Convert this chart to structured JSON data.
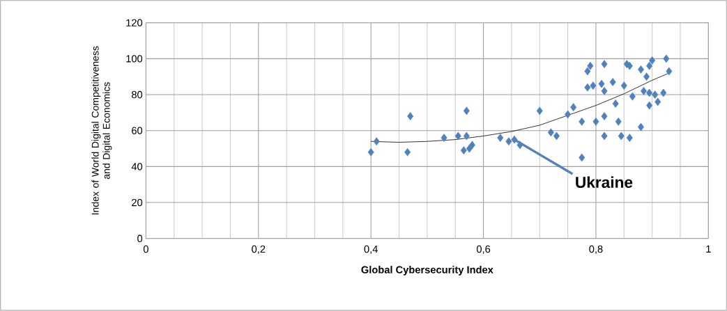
{
  "chart_data": {
    "type": "scatter",
    "xlabel": "Global Cybersecurity Index",
    "ylabel": "Index of World Digital Competitiveness and Digital Economics",
    "xlim": [
      0,
      1
    ],
    "ylim": [
      0,
      120
    ],
    "xticks": [
      0,
      {
        "value": 0.2,
        "label": "0,2"
      },
      {
        "value": 0.4,
        "label": "0,4"
      },
      {
        "value": 0.6,
        "label": "0,6"
      },
      {
        "value": 0.8,
        "label": "0,8"
      },
      1
    ],
    "yticks": [
      0,
      20,
      40,
      60,
      80,
      100,
      120
    ],
    "grid": true,
    "marker": "diamond",
    "series": [
      {
        "color": "#4f81bd",
        "x": [
          0.4,
          0.41,
          0.465,
          0.47,
          0.53,
          0.555,
          0.565,
          0.57,
          0.57,
          0.575,
          0.58,
          0.63,
          0.645,
          0.655,
          0.665,
          0.7,
          0.72,
          0.73,
          0.75,
          0.76,
          0.775,
          0.775,
          0.785,
          0.79,
          0.785,
          0.795,
          0.8,
          0.81,
          0.815,
          0.815,
          0.815,
          0.815,
          0.83,
          0.835,
          0.84,
          0.845,
          0.85,
          0.855,
          0.86,
          0.86,
          0.865,
          0.88,
          0.88,
          0.885,
          0.89,
          0.895,
          0.895,
          0.9,
          0.905,
          0.91,
          0.92,
          0.925,
          0.93,
          0.895
        ],
        "values": [
          48,
          54,
          48,
          68,
          56,
          57,
          49,
          71,
          57,
          50,
          52,
          56,
          54,
          55,
          52,
          71,
          59,
          57,
          69,
          73,
          65,
          45,
          93,
          96,
          84,
          85,
          65,
          86,
          97,
          82,
          68,
          57,
          87,
          75,
          65,
          57,
          85,
          97,
          96,
          56,
          79,
          62,
          94,
          82,
          90,
          81,
          74,
          99,
          80,
          76,
          81,
          100,
          93,
          96
        ]
      },
      {
        "type": "line",
        "color": "#000000",
        "marker": "none",
        "x": [
          0.4,
          0.45,
          0.5,
          0.55,
          0.6,
          0.65,
          0.7,
          0.8,
          0.85,
          0.9,
          0.93
        ],
        "values": [
          54,
          53.5,
          54,
          55,
          57,
          59.5,
          63,
          74,
          80.5,
          88,
          92
        ]
      }
    ],
    "annotations": [
      {
        "text": "Ukraine",
        "x": 0.655,
        "y": 55
      }
    ]
  }
}
